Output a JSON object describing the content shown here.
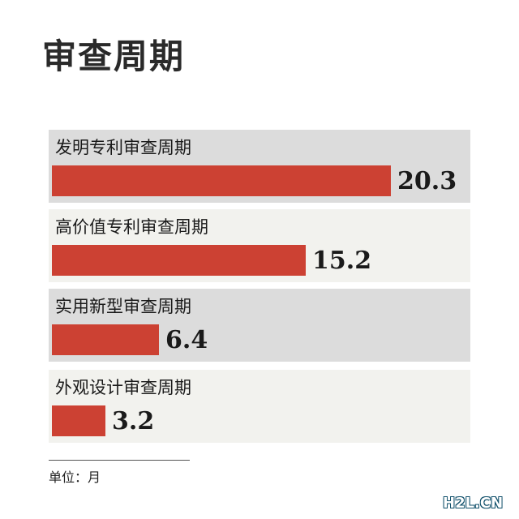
{
  "title": "审查周期",
  "unit_label": "单位：月",
  "watermark": "H2L.CN",
  "colors": {
    "bar": "#cc4133",
    "panel_dark": "#dcdcdc",
    "panel_light": "#f2f2ee"
  },
  "chart_data": {
    "type": "bar",
    "orientation": "horizontal",
    "title": "审查周期",
    "categories": [
      "发明专利审查周期",
      "高价值专利审查周期",
      "实用新型审查周期",
      "外观设计审查周期"
    ],
    "values": [
      20.3,
      15.2,
      6.4,
      3.2
    ],
    "value_labels": [
      "20.3",
      "15.2",
      "6.4",
      "3.2"
    ],
    "unit": "月",
    "xlim": [
      0,
      20.3
    ],
    "grid": false,
    "legend": "none"
  }
}
